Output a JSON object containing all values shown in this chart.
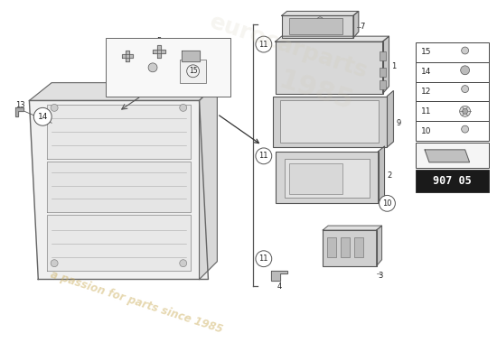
{
  "bg_color": "#ffffff",
  "line_color": "#555555",
  "text_color": "#222222",
  "light_gray": "#cccccc",
  "mid_gray": "#aaaaaa",
  "dark_gray": "#888888",
  "watermark_text1": "a passion for parts since 1985",
  "watermark_color": "#c8a850",
  "watermark_alpha": 0.45,
  "part_number": "907 05",
  "legend_items": [
    {
      "num": "15",
      "shape": "small_screw"
    },
    {
      "num": "14",
      "shape": "bolt"
    },
    {
      "num": "12",
      "shape": "screw"
    },
    {
      "num": "11",
      "shape": "clip"
    },
    {
      "num": "10",
      "shape": "screw_small"
    }
  ]
}
